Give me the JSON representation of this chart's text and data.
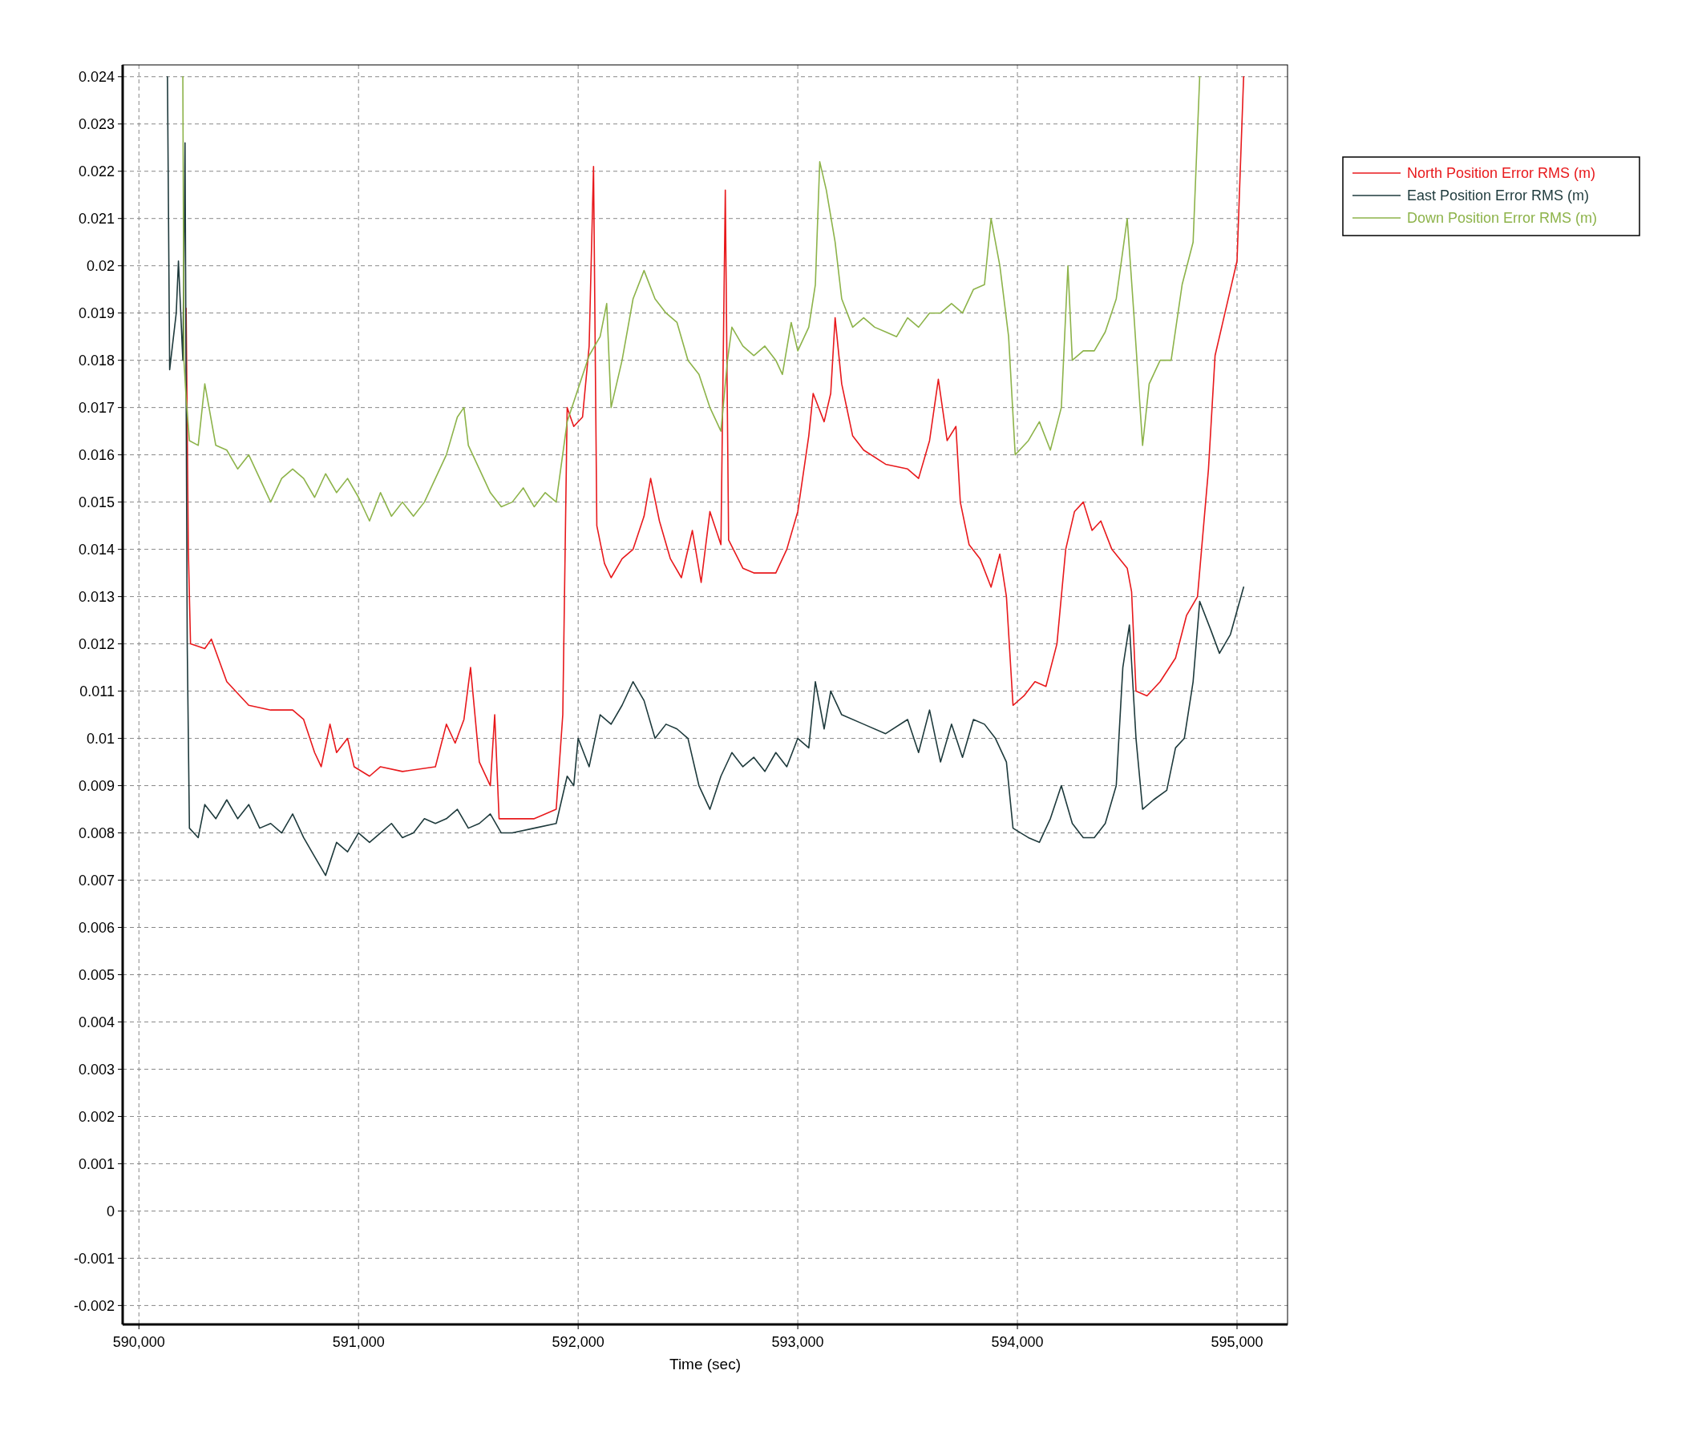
{
  "chart_data": {
    "type": "line",
    "xlabel": "Time (sec)",
    "xlim": [
      589926,
      595230
    ],
    "ylim": [
      -0.0024,
      0.02425
    ],
    "xticks": [
      {
        "value": 590000,
        "label": "590,000"
      },
      {
        "value": 591000,
        "label": "591,000"
      },
      {
        "value": 592000,
        "label": "592,000"
      },
      {
        "value": 593000,
        "label": "593,000"
      },
      {
        "value": 594000,
        "label": "594,000"
      },
      {
        "value": 595000,
        "label": "595,000"
      }
    ],
    "yticks": [
      0.024,
      0.023,
      0.022,
      0.021,
      0.02,
      0.019,
      0.018,
      0.017,
      0.016,
      0.015,
      0.014,
      0.013,
      0.012,
      0.011,
      0.01,
      0.009,
      0.008,
      0.007,
      0.006,
      0.005,
      0.004,
      0.003,
      0.002,
      0.001,
      0,
      -0.001,
      -0.002
    ],
    "grid": true,
    "legend": "top right",
    "line_style": "solid",
    "marker": "none",
    "series": [
      {
        "name": "North Position Error RMS (m)",
        "color": "#e8191c",
        "x": [
          590215,
          590225,
          590235,
          590300,
          590330,
          590400,
          590500,
          590600,
          590700,
          590750,
          590800,
          590830,
          590870,
          590900,
          590950,
          590980,
          591050,
          591100,
          591200,
          591350,
          591400,
          591440,
          591480,
          591510,
          591550,
          591600,
          591620,
          591640,
          591700,
          591800,
          591900,
          591930,
          591950,
          591980,
          592020,
          592050,
          592070,
          592085,
          592120,
          592150,
          592200,
          592250,
          592300,
          592330,
          592370,
          592420,
          592470,
          592520,
          592560,
          592600,
          592650,
          592670,
          592685,
          592750,
          592800,
          592900,
          592950,
          593000,
          593050,
          593070,
          593120,
          593150,
          593170,
          593200,
          593250,
          593300,
          593400,
          593500,
          593550,
          593600,
          593640,
          593680,
          593720,
          593740,
          593780,
          593830,
          593880,
          593920,
          593950,
          593980,
          594030,
          594080,
          594130,
          594180,
          594220,
          594260,
          594300,
          594340,
          594380,
          594430,
          594500,
          594520,
          594540,
          594590,
          594650,
          594720,
          594770,
          594820,
          594870,
          594900,
          594970,
          595000,
          595030
        ],
        "values": [
          0.0191,
          0.014,
          0.012,
          0.0119,
          0.0121,
          0.0112,
          0.0107,
          0.0106,
          0.0106,
          0.0104,
          0.0097,
          0.0094,
          0.0103,
          0.0097,
          0.01,
          0.0094,
          0.0092,
          0.0094,
          0.0093,
          0.0094,
          0.0103,
          0.0099,
          0.0104,
          0.0115,
          0.0095,
          0.009,
          0.0105,
          0.0083,
          0.0083,
          0.0083,
          0.0085,
          0.0105,
          0.017,
          0.0166,
          0.0168,
          0.0183,
          0.0221,
          0.0145,
          0.0137,
          0.0134,
          0.0138,
          0.014,
          0.0147,
          0.0155,
          0.0146,
          0.0138,
          0.0134,
          0.0144,
          0.0133,
          0.0148,
          0.0141,
          0.0216,
          0.0142,
          0.0136,
          0.0135,
          0.0135,
          0.014,
          0.0148,
          0.0164,
          0.0173,
          0.0167,
          0.0173,
          0.0189,
          0.0175,
          0.0164,
          0.0161,
          0.0158,
          0.0157,
          0.0155,
          0.0163,
          0.0176,
          0.0163,
          0.0166,
          0.015,
          0.0141,
          0.0138,
          0.0132,
          0.0139,
          0.013,
          0.0107,
          0.0109,
          0.0112,
          0.0111,
          0.012,
          0.014,
          0.0148,
          0.015,
          0.0144,
          0.0146,
          0.014,
          0.0136,
          0.0131,
          0.011,
          0.0109,
          0.0112,
          0.0117,
          0.0126,
          0.013,
          0.0157,
          0.0181,
          0.0195,
          0.0201,
          0.024
        ]
      },
      {
        "name": "East Position Error RMS (m)",
        "color": "#1e3a3c",
        "x": [
          590130,
          590140,
          590170,
          590180,
          590200,
          590210,
          590220,
          590230,
          590270,
          590300,
          590350,
          590400,
          590450,
          590500,
          590550,
          590600,
          590650,
          590700,
          590750,
          590800,
          590850,
          590900,
          590950,
          591000,
          591050,
          591100,
          591150,
          591200,
          591250,
          591300,
          591350,
          591400,
          591450,
          591500,
          591550,
          591600,
          591650,
          591700,
          591800,
          591900,
          591950,
          591980,
          592000,
          592050,
          592100,
          592150,
          592200,
          592250,
          592300,
          592350,
          592400,
          592450,
          592500,
          592550,
          592600,
          592650,
          592700,
          592750,
          592800,
          592850,
          592900,
          592950,
          593000,
          593050,
          593080,
          593120,
          593150,
          593200,
          593300,
          593400,
          593500,
          593550,
          593600,
          593650,
          593700,
          593750,
          593800,
          593850,
          593900,
          593950,
          593980,
          594050,
          594100,
          594150,
          594200,
          594250,
          594300,
          594350,
          594400,
          594450,
          594480,
          594510,
          594540,
          594570,
          594620,
          594680,
          594720,
          594760,
          594800,
          594830,
          594880,
          594920,
          594970,
          595000,
          595030
        ],
        "values": [
          0.024,
          0.0178,
          0.019,
          0.0201,
          0.018,
          0.0226,
          0.012,
          0.0081,
          0.0079,
          0.0086,
          0.0083,
          0.0087,
          0.0083,
          0.0086,
          0.0081,
          0.0082,
          0.008,
          0.0084,
          0.0079,
          0.0075,
          0.0071,
          0.0078,
          0.0076,
          0.008,
          0.0078,
          0.008,
          0.0082,
          0.0079,
          0.008,
          0.0083,
          0.0082,
          0.0083,
          0.0085,
          0.0081,
          0.0082,
          0.0084,
          0.008,
          0.008,
          0.0081,
          0.0082,
          0.0092,
          0.009,
          0.01,
          0.0094,
          0.0105,
          0.0103,
          0.0107,
          0.0112,
          0.0108,
          0.01,
          0.0103,
          0.0102,
          0.01,
          0.009,
          0.0085,
          0.0092,
          0.0097,
          0.0094,
          0.0096,
          0.0093,
          0.0097,
          0.0094,
          0.01,
          0.0098,
          0.0112,
          0.0102,
          0.011,
          0.0105,
          0.0103,
          0.0101,
          0.0104,
          0.0097,
          0.0106,
          0.0095,
          0.0103,
          0.0096,
          0.0104,
          0.0103,
          0.01,
          0.0095,
          0.0081,
          0.0079,
          0.0078,
          0.0083,
          0.009,
          0.0082,
          0.0079,
          0.0079,
          0.0082,
          0.009,
          0.0115,
          0.0124,
          0.01,
          0.0085,
          0.0087,
          0.0089,
          0.0098,
          0.01,
          0.0112,
          0.0129,
          0.0123,
          0.0118,
          0.0122,
          0.0127,
          0.0132
        ]
      },
      {
        "name": "Down Position Error RMS (m)",
        "color": "#8db34a",
        "x": [
          590200,
          590205,
          590215,
          590230,
          590270,
          590300,
          590350,
          590400,
          590450,
          590500,
          590550,
          590600,
          590650,
          590700,
          590750,
          590800,
          590850,
          590900,
          590950,
          591000,
          591050,
          591100,
          591150,
          591200,
          591250,
          591300,
          591350,
          591400,
          591450,
          591480,
          591500,
          591550,
          591600,
          591650,
          591700,
          591750,
          591800,
          591850,
          591900,
          591950,
          592000,
          592050,
          592100,
          592130,
          592150,
          592200,
          592250,
          592300,
          592350,
          592400,
          592450,
          592500,
          592550,
          592600,
          592650,
          592680,
          592700,
          592750,
          592800,
          592850,
          592900,
          592930,
          592970,
          593000,
          593050,
          593080,
          593100,
          593130,
          593170,
          593200,
          593250,
          593300,
          593350,
          593400,
          593450,
          593500,
          593550,
          593600,
          593650,
          593700,
          593750,
          593800,
          593850,
          593880,
          593920,
          593960,
          593990,
          594050,
          594100,
          594150,
          594200,
          594230,
          594250,
          594300,
          594350,
          594400,
          594450,
          594500,
          594530,
          594570,
          594600,
          594650,
          594700,
          594750,
          594800,
          594830
        ],
        "values": [
          0.024,
          0.018,
          0.0172,
          0.0163,
          0.0162,
          0.0175,
          0.0162,
          0.0161,
          0.0157,
          0.016,
          0.0155,
          0.015,
          0.0155,
          0.0157,
          0.0155,
          0.0151,
          0.0156,
          0.0152,
          0.0155,
          0.0151,
          0.0146,
          0.0152,
          0.0147,
          0.015,
          0.0147,
          0.015,
          0.0155,
          0.016,
          0.0168,
          0.017,
          0.0162,
          0.0157,
          0.0152,
          0.0149,
          0.015,
          0.0153,
          0.0149,
          0.0152,
          0.015,
          0.0167,
          0.0174,
          0.0181,
          0.0185,
          0.0192,
          0.017,
          0.018,
          0.0193,
          0.0199,
          0.0193,
          0.019,
          0.0188,
          0.018,
          0.0177,
          0.017,
          0.0165,
          0.018,
          0.0187,
          0.0183,
          0.0181,
          0.0183,
          0.018,
          0.0177,
          0.0188,
          0.0182,
          0.0187,
          0.0196,
          0.0222,
          0.0216,
          0.0205,
          0.0193,
          0.0187,
          0.0189,
          0.0187,
          0.0186,
          0.0185,
          0.0189,
          0.0187,
          0.019,
          0.019,
          0.0192,
          0.019,
          0.0195,
          0.0196,
          0.021,
          0.02,
          0.0185,
          0.016,
          0.0163,
          0.0167,
          0.0161,
          0.017,
          0.02,
          0.018,
          0.0182,
          0.0182,
          0.0186,
          0.0193,
          0.021,
          0.019,
          0.0162,
          0.0175,
          0.018,
          0.018,
          0.0196,
          0.0205,
          0.024
        ]
      }
    ]
  }
}
